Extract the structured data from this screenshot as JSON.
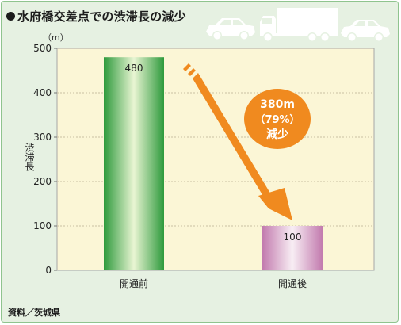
{
  "title": "水府橋交差点での渋滞長の減少",
  "source": "資料／茨城県",
  "colors": {
    "background": "#e6f1e2",
    "plot_background": "#fbf6d6",
    "bar_before": "#3aa545",
    "bar_after": "#c77fb4",
    "arrow": "#f08a1f",
    "badge": "#f08a1f",
    "vehicles": "#ffffff"
  },
  "icons": [
    "car-icon",
    "truck-icon",
    "car-icon"
  ],
  "annotation": {
    "line1": "380m",
    "line2": "（79%）",
    "line3": "減少"
  },
  "chart_data": {
    "type": "bar",
    "categories": [
      "開通前",
      "開通後"
    ],
    "values": [
      480,
      100
    ],
    "value_labels": [
      "480",
      "100"
    ],
    "title": "水府橋交差点での渋滞長の減少",
    "xlabel": "",
    "ylabel": "渋滞長",
    "unit": "（m）",
    "ylim": [
      0,
      500
    ],
    "yticks": [
      0,
      100,
      200,
      300,
      400,
      500
    ],
    "grid": true,
    "legend": "none"
  }
}
